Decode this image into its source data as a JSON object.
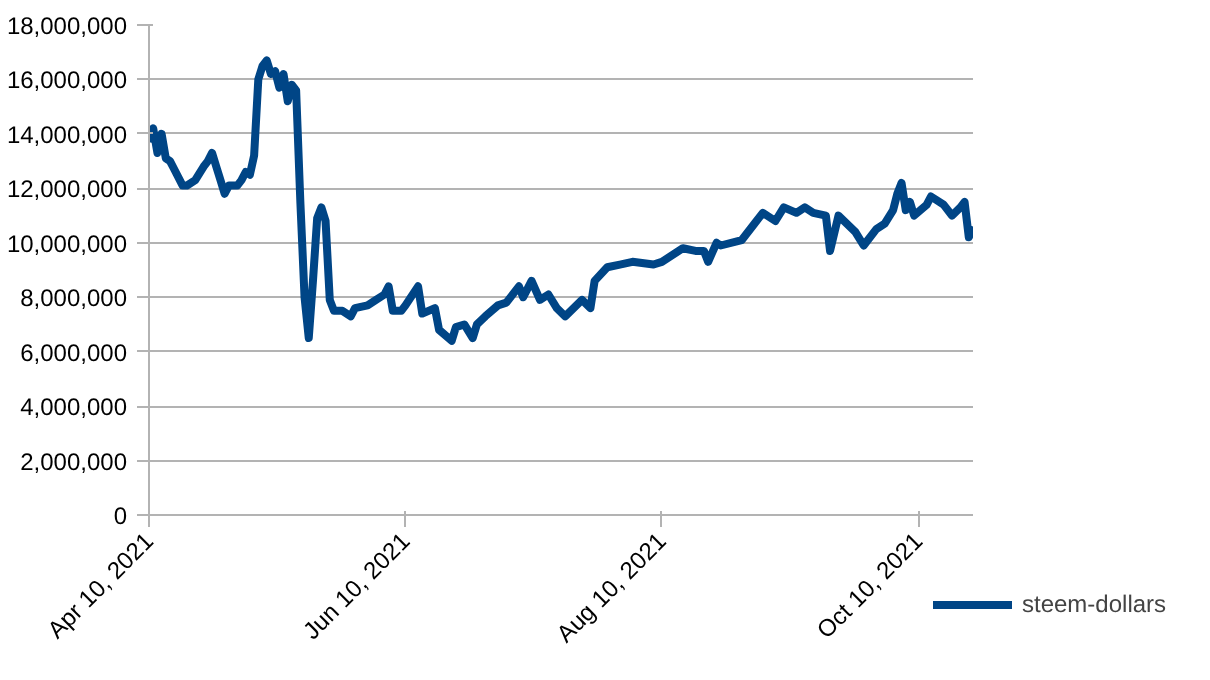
{
  "chart_data": {
    "type": "line",
    "x": [
      "2021-04-10",
      "2021-04-11",
      "2021-04-12",
      "2021-04-13",
      "2021-04-14",
      "2021-04-15",
      "2021-04-16",
      "2021-04-18",
      "2021-04-19",
      "2021-04-21",
      "2021-04-23",
      "2021-04-24",
      "2021-04-25",
      "2021-04-26",
      "2021-04-27",
      "2021-04-28",
      "2021-04-29",
      "2021-05-01",
      "2021-05-02",
      "2021-05-03",
      "2021-05-04",
      "2021-05-05",
      "2021-05-06",
      "2021-05-07",
      "2021-05-08",
      "2021-05-09",
      "2021-05-10",
      "2021-05-11",
      "2021-05-12",
      "2021-05-13",
      "2021-05-14",
      "2021-05-15",
      "2021-05-16",
      "2021-05-17",
      "2021-05-18",
      "2021-05-19",
      "2021-05-20",
      "2021-05-21",
      "2021-05-22",
      "2021-05-23",
      "2021-05-24",
      "2021-05-26",
      "2021-05-28",
      "2021-05-29",
      "2021-06-01",
      "2021-06-03",
      "2021-06-05",
      "2021-06-06",
      "2021-06-07",
      "2021-06-09",
      "2021-06-10",
      "2021-06-13",
      "2021-06-14",
      "2021-06-17",
      "2021-06-18",
      "2021-06-21",
      "2021-06-22",
      "2021-06-24",
      "2021-06-26",
      "2021-06-27",
      "2021-06-29",
      "2021-07-02",
      "2021-07-04",
      "2021-07-07",
      "2021-07-08",
      "2021-07-10",
      "2021-07-12",
      "2021-07-14",
      "2021-07-16",
      "2021-07-18",
      "2021-07-22",
      "2021-07-24",
      "2021-07-25",
      "2021-07-28",
      "2021-07-31",
      "2021-08-03",
      "2021-08-08",
      "2021-08-10",
      "2021-08-12",
      "2021-08-15",
      "2021-08-18",
      "2021-08-20",
      "2021-08-21",
      "2021-08-23",
      "2021-08-24",
      "2021-08-29",
      "2021-09-01",
      "2021-09-03",
      "2021-09-06",
      "2021-09-08",
      "2021-09-11",
      "2021-09-13",
      "2021-09-15",
      "2021-09-18",
      "2021-09-19",
      "2021-09-21",
      "2021-09-25",
      "2021-09-27",
      "2021-09-30",
      "2021-10-02",
      "2021-10-04",
      "2021-10-05",
      "2021-10-06",
      "2021-10-07",
      "2021-10-08",
      "2021-10-09",
      "2021-10-12",
      "2021-10-13",
      "2021-10-16",
      "2021-10-18",
      "2021-10-20",
      "2021-10-21",
      "2021-10-22",
      "2021-10-23"
    ],
    "series": [
      {
        "name": "steem-dollars",
        "color": "#004586",
        "values": [
          13700000,
          14200000,
          13300000,
          14000000,
          13100000,
          13000000,
          12700000,
          12100000,
          12100000,
          12300000,
          12800000,
          13000000,
          13300000,
          12800000,
          12300000,
          11800000,
          12100000,
          12100000,
          12300000,
          12600000,
          12500000,
          13200000,
          16000000,
          16500000,
          16700000,
          16200000,
          16300000,
          15700000,
          16200000,
          15200000,
          15800000,
          15600000,
          11500000,
          8000000,
          6500000,
          8600000,
          10900000,
          11300000,
          10800000,
          7900000,
          7500000,
          7500000,
          7300000,
          7600000,
          7700000,
          7900000,
          8100000,
          8400000,
          7500000,
          7500000,
          7700000,
          8400000,
          7400000,
          7600000,
          6800000,
          6400000,
          6900000,
          7000000,
          6500000,
          7000000,
          7300000,
          7700000,
          7800000,
          8400000,
          8000000,
          8600000,
          7900000,
          8100000,
          7600000,
          7300000,
          7900000,
          7600000,
          8600000,
          9100000,
          9200000,
          9300000,
          9200000,
          9300000,
          9500000,
          9800000,
          9700000,
          9700000,
          9300000,
          10000000,
          9900000,
          10100000,
          10700000,
          11100000,
          10800000,
          11300000,
          11100000,
          11300000,
          11100000,
          11000000,
          9700000,
          11000000,
          10400000,
          9900000,
          10500000,
          10700000,
          11200000,
          11800000,
          12200000,
          11200000,
          11500000,
          11000000,
          11400000,
          11700000,
          11400000,
          11000000,
          11300000,
          11500000,
          10200000,
          10600000
        ]
      }
    ],
    "xlim": [
      "2021-04-10",
      "2021-10-23"
    ],
    "xticks": [
      {
        "value": "2021-04-10",
        "label": "Apr 10, 2021"
      },
      {
        "value": "2021-06-10",
        "label": "Jun 10, 2021"
      },
      {
        "value": "2021-08-10",
        "label": "Aug 10, 2021"
      },
      {
        "value": "2021-10-10",
        "label": "Oct 10, 2021"
      }
    ],
    "ylim": [
      0,
      18000000
    ],
    "yticks": [
      {
        "value": 0,
        "label": "0"
      },
      {
        "value": 2000000,
        "label": "2,000,000"
      },
      {
        "value": 4000000,
        "label": "4,000,000"
      },
      {
        "value": 6000000,
        "label": "6,000,000"
      },
      {
        "value": 8000000,
        "label": "8,000,000"
      },
      {
        "value": 10000000,
        "label": "10,000,000"
      },
      {
        "value": 12000000,
        "label": "12,000,000"
      },
      {
        "value": 14000000,
        "label": "14,000,000"
      },
      {
        "value": 16000000,
        "label": "16,000,000"
      },
      {
        "value": 18000000,
        "label": "18,000,000"
      }
    ],
    "grid": "y",
    "legend": "right",
    "marker": "none",
    "line_style": "solid"
  }
}
